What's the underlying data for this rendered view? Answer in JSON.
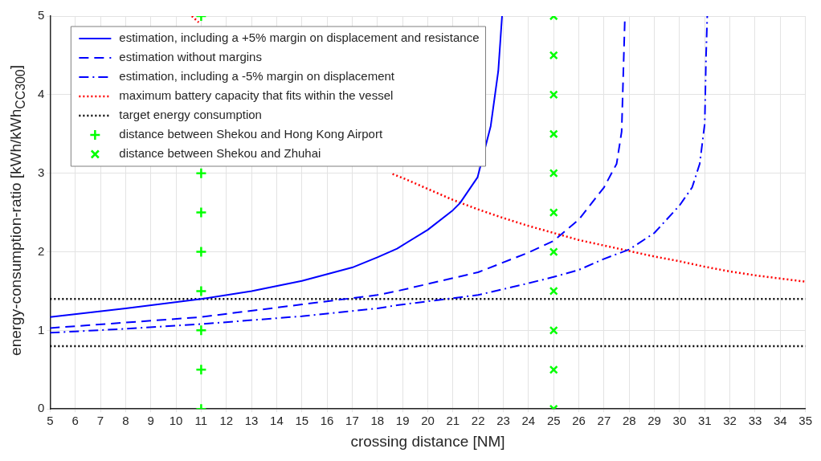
{
  "chart_data": {
    "type": "line",
    "xlabel": "crossing distance [NM]",
    "ylabel": "energy-consumption-ratio [kWh/kWh$_{CC300}$]",
    "xlim": [
      5,
      35
    ],
    "ylim": [
      0,
      5
    ],
    "xticks": [
      5,
      6,
      7,
      8,
      9,
      10,
      11,
      12,
      13,
      14,
      15,
      16,
      17,
      18,
      19,
      20,
      21,
      22,
      23,
      24,
      25,
      26,
      27,
      28,
      29,
      30,
      31,
      32,
      33,
      34,
      35
    ],
    "yticks": [
      0,
      1,
      2,
      3,
      4,
      5
    ],
    "grid": true,
    "legend": "top left",
    "series": [
      {
        "name": "estimation, including a +5% margin on displacement and resistance",
        "color": "#0000ff",
        "line_style": "solid",
        "marker": "none",
        "x": [
          5,
          8,
          11,
          13,
          15,
          17,
          18,
          18.78,
          20,
          21,
          21.28,
          21.98,
          22.5,
          22.8,
          22.95
        ],
        "values": [
          1.17,
          1.28,
          1.4,
          1.5,
          1.63,
          1.8,
          1.93,
          2.04,
          2.28,
          2.53,
          2.62,
          2.95,
          3.6,
          4.3,
          5
        ]
      },
      {
        "name": "estimation without margins",
        "color": "#0000ff",
        "line_style": "dashed",
        "marker": "none",
        "x": [
          5,
          8,
          11,
          15,
          18,
          18.78,
          22,
          24,
          25,
          26,
          27,
          27.5,
          27.7,
          27.83
        ],
        "values": [
          1.03,
          1.1,
          1.17,
          1.33,
          1.45,
          1.5,
          1.74,
          1.99,
          2.14,
          2.41,
          2.82,
          3.12,
          3.53,
          5
        ]
      },
      {
        "name": "estimation, including a -5% margin on displacement",
        "color": "#0000ff",
        "line_style": "dashdot",
        "marker": "none",
        "x": [
          5,
          8,
          11,
          15,
          18,
          18.78,
          22,
          24,
          25,
          26,
          27,
          28,
          29,
          30,
          30.5,
          30.8,
          31,
          31.05,
          31.1
        ],
        "values": [
          0.97,
          1.02,
          1.08,
          1.18,
          1.28,
          1.32,
          1.45,
          1.6,
          1.68,
          1.77,
          1.91,
          2.03,
          2.24,
          2.59,
          2.82,
          3.12,
          3.63,
          4.47,
          5
        ]
      },
      {
        "name": "maximum battery capacity that fits within the vessel",
        "color": "#ff0000",
        "line_style": "dotted",
        "marker": "none",
        "x": [
          10.63,
          10.9,
          15,
          18.6,
          19,
          20,
          21,
          22,
          23,
          24,
          25,
          26,
          27,
          28,
          29,
          30,
          31,
          32,
          33,
          34,
          35
        ],
        "values": [
          5,
          4.92,
          null,
          2.99,
          2.94,
          2.8,
          2.66,
          2.54,
          2.43,
          2.33,
          2.24,
          2.15,
          2.08,
          2.01,
          1.94,
          1.88,
          1.81,
          1.75,
          1.7,
          1.66,
          1.62
        ]
      },
      {
        "name": "target energy consumption",
        "color": "#000000",
        "line_style": "dotted",
        "marker": "none",
        "x": [
          5,
          35
        ],
        "values": [
          1.4,
          1.4
        ]
      },
      {
        "color": "#000000",
        "line_style": "dotted",
        "marker": "none",
        "x": [
          5,
          35
        ],
        "values": [
          0.8,
          0.8
        ]
      },
      {
        "name": "distance between Shekou and Hong Kong Airport",
        "type": "scatter",
        "color": "#00ff00",
        "marker": "cross",
        "x": [
          11,
          11,
          11,
          11,
          11,
          11,
          11,
          11
        ],
        "values": [
          0,
          0.5,
          1,
          1.5,
          2,
          2.5,
          3,
          5
        ]
      },
      {
        "name": "distance between Shekou and Zhuhai",
        "type": "scatter",
        "color": "#00ff00",
        "marker": "x",
        "x": [
          25,
          25,
          25,
          25,
          25,
          25,
          25,
          25,
          25,
          25,
          25
        ],
        "values": [
          0,
          0.5,
          1,
          1.5,
          2,
          2.5,
          3,
          3.5,
          4,
          4.5,
          5
        ]
      }
    ]
  }
}
